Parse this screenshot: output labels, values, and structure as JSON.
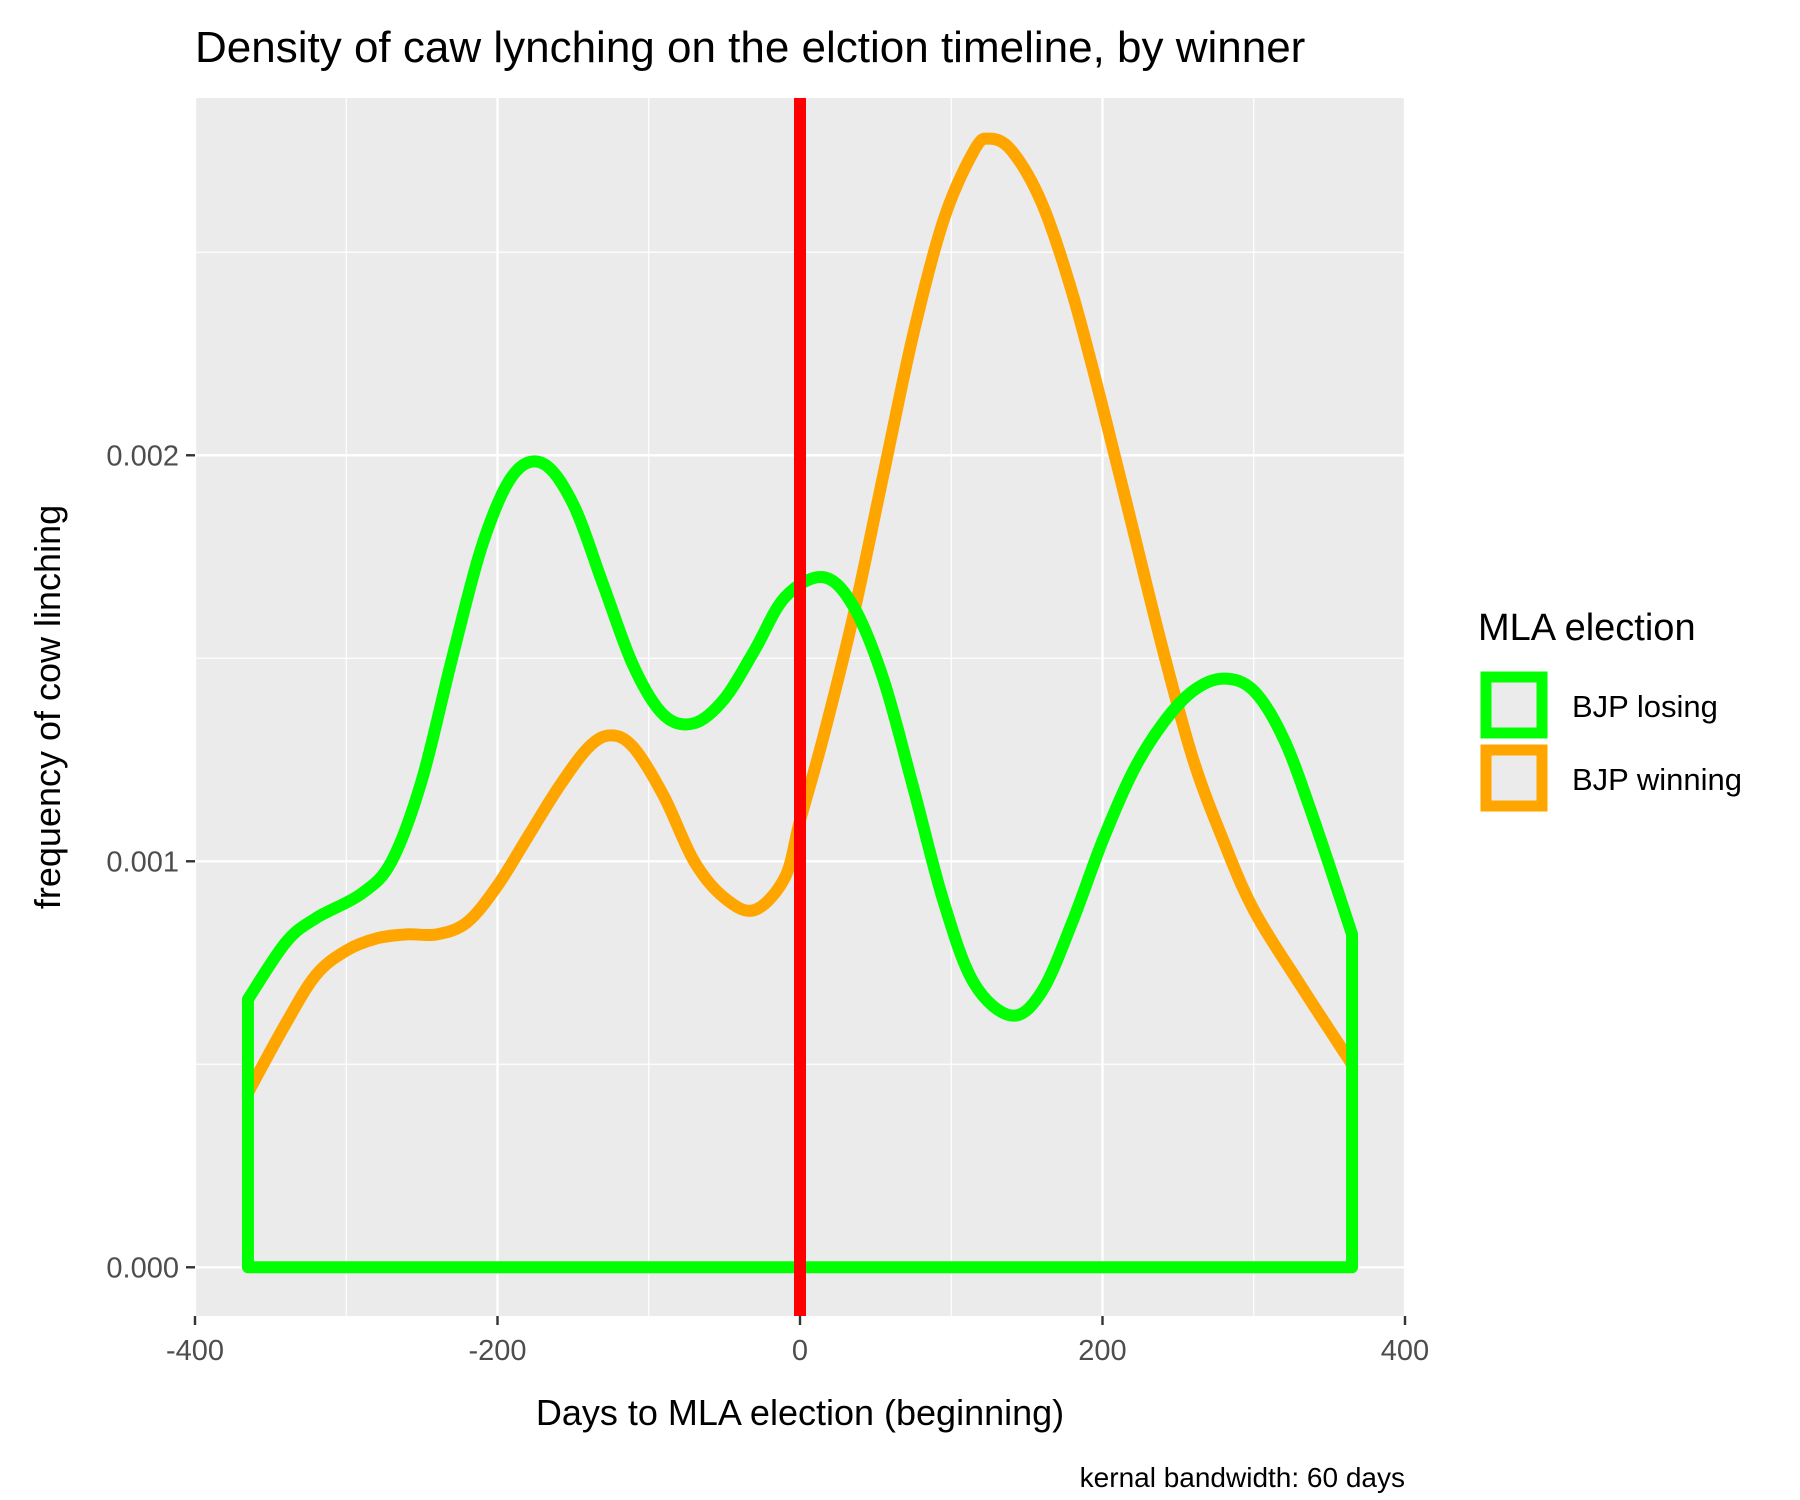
{
  "chart_data": {
    "type": "line",
    "title": "Density of caw lynching on the elction timeline, by winner",
    "xlabel": "Days to MLA election (beginning)",
    "ylabel": "frequency of cow linching",
    "caption": "kernal bandwidth: 60 days",
    "xlim": [
      -400,
      400
    ],
    "ylim": [
      -0.00012,
      0.00288
    ],
    "x_ticks": [
      -400,
      -200,
      0,
      200,
      400
    ],
    "x_tick_labels": [
      "-400",
      "-200",
      "0",
      "200",
      "400"
    ],
    "y_ticks": [
      0.0,
      0.001,
      0.002
    ],
    "y_tick_labels": [
      "0.000",
      "0.001",
      "0.002"
    ],
    "grid": true,
    "legend": {
      "title": "MLA election",
      "placement": "right",
      "entries": [
        "BJP losing",
        "BJP winning"
      ]
    },
    "vline": {
      "x": 0,
      "color": "#ff0000"
    },
    "series": [
      {
        "name": "BJP losing",
        "color": "#00ff00",
        "fill": "none",
        "closed_to_baseline": true,
        "x": [
          -365,
          -340,
          -320,
          -290,
          -270,
          -250,
          -230,
          -210,
          -190,
          -170,
          -150,
          -130,
          -110,
          -90,
          -70,
          -50,
          -30,
          -10,
          15,
          35,
          55,
          75,
          95,
          115,
          140,
          160,
          180,
          200,
          220,
          240,
          260,
          280,
          300,
          320,
          340,
          365
        ],
        "y": [
          0.00066,
          0.0008,
          0.00086,
          0.00092,
          0.001,
          0.0012,
          0.0015,
          0.00178,
          0.00195,
          0.00198,
          0.00188,
          0.00168,
          0.00148,
          0.00136,
          0.00134,
          0.0014,
          0.00152,
          0.00165,
          0.0017,
          0.00163,
          0.00145,
          0.00118,
          0.0009,
          0.0007,
          0.00062,
          0.00068,
          0.00085,
          0.00105,
          0.00122,
          0.00134,
          0.00142,
          0.00145,
          0.00142,
          0.0013,
          0.0011,
          0.00082
        ]
      },
      {
        "name": "BJP winning",
        "color": "#ffa500",
        "fill": "none",
        "closed_to_baseline": false,
        "x": [
          -365,
          -340,
          -320,
          -300,
          -280,
          -260,
          -240,
          -220,
          -200,
          -180,
          -160,
          -140,
          -125,
          -110,
          -90,
          -70,
          -50,
          -30,
          -10,
          0,
          15,
          35,
          55,
          75,
          95,
          115,
          125,
          140,
          160,
          180,
          200,
          220,
          240,
          260,
          280,
          300,
          330,
          365
        ],
        "y": [
          0.00043,
          0.0006,
          0.00072,
          0.00078,
          0.00081,
          0.00082,
          0.00082,
          0.00085,
          0.00094,
          0.00106,
          0.00118,
          0.00128,
          0.00131,
          0.00128,
          0.00116,
          0.001,
          0.00091,
          0.00088,
          0.00096,
          0.0011,
          0.0013,
          0.0016,
          0.00195,
          0.0023,
          0.00258,
          0.00275,
          0.00278,
          0.00275,
          0.00262,
          0.0024,
          0.00212,
          0.00182,
          0.00152,
          0.00125,
          0.00105,
          0.00088,
          0.0007,
          0.0005
        ]
      }
    ]
  }
}
